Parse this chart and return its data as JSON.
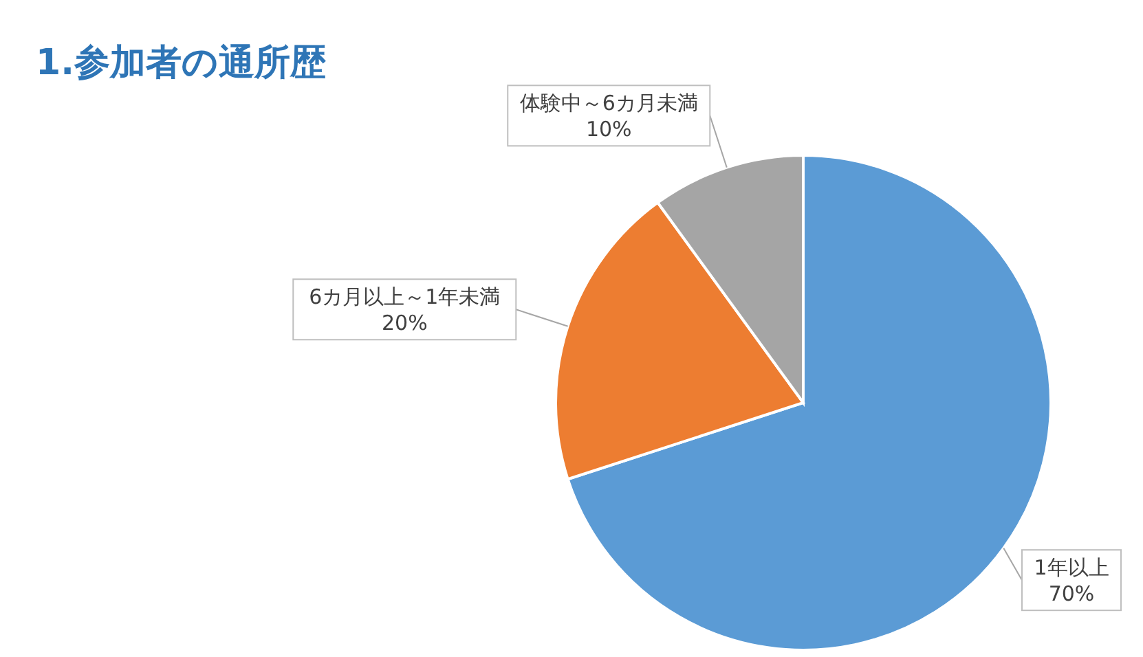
{
  "chart_data": {
    "type": "pie",
    "title": "1.参加者の通所歴",
    "categories": [
      "1年以上",
      "6カ月以上～1年未満",
      "体験中～6カ月未満"
    ],
    "values": [
      70,
      20,
      10
    ],
    "colors": [
      "#5b9bd5",
      "#ed7d31",
      "#a5a5a5"
    ],
    "value_labels": [
      "70%",
      "20%",
      "10%"
    ],
    "legend": false
  }
}
